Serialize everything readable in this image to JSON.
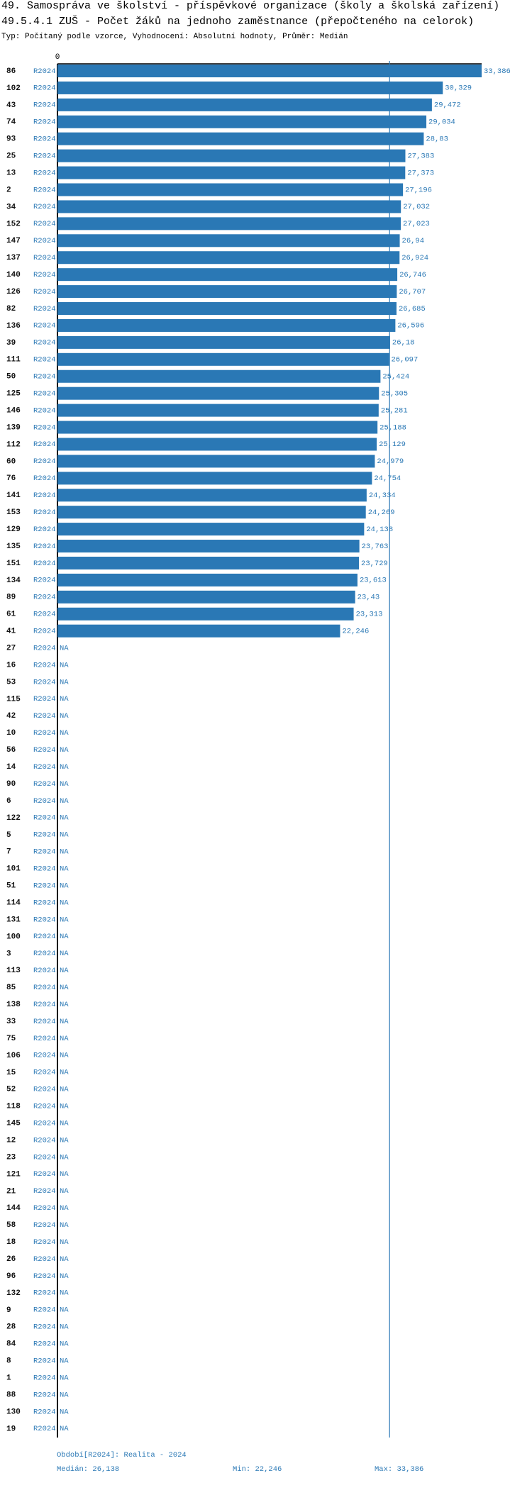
{
  "chart_data": {
    "type": "hbar",
    "title": "49. Samospráva ve školství - příspěvkové organizace (školy a školská zařízení)",
    "subtitle": "49.5.4.1 ZUŠ - Počet žáků na jednoho zaměstnance (přepočteného na celorok)",
    "note": "Typ: Počítaný podle vzorce, Vyhodnocení: Absolutní hodnoty, Průměr: Medián",
    "categories": [
      "86",
      "102",
      "43",
      "74",
      "93",
      "25",
      "13",
      "2",
      "34",
      "152",
      "147",
      "137",
      "140",
      "126",
      "82",
      "136",
      "39",
      "111",
      "50",
      "125",
      "146",
      "139",
      "112",
      "60",
      "76",
      "141",
      "153",
      "129",
      "135",
      "151",
      "134",
      "89",
      "61",
      "41",
      "27",
      "16",
      "53",
      "115",
      "42",
      "10",
      "56",
      "14",
      "90",
      "6",
      "122",
      "5",
      "7",
      "101",
      "51",
      "114",
      "131",
      "100",
      "3",
      "113",
      "85",
      "138",
      "33",
      "75",
      "106",
      "15",
      "52",
      "118",
      "145",
      "12",
      "23",
      "121",
      "21",
      "144",
      "58",
      "18",
      "26",
      "96",
      "132",
      "9",
      "28",
      "84",
      "8",
      "1",
      "88",
      "130",
      "19"
    ],
    "series": [
      {
        "name": "R2024",
        "color": "#2a78b5",
        "values": [
          33.386,
          30.329,
          29.472,
          29.034,
          28.83,
          27.383,
          27.373,
          27.196,
          27.032,
          27.023,
          26.94,
          26.924,
          26.746,
          26.707,
          26.685,
          26.596,
          26.18,
          26.097,
          25.424,
          25.305,
          25.281,
          25.188,
          25.129,
          24.979,
          24.754,
          24.334,
          24.269,
          24.138,
          23.763,
          23.729,
          23.613,
          23.43,
          23.313,
          22.246,
          null,
          null,
          null,
          null,
          null,
          null,
          null,
          null,
          null,
          null,
          null,
          null,
          null,
          null,
          null,
          null,
          null,
          null,
          null,
          null,
          null,
          null,
          null,
          null,
          null,
          null,
          null,
          null,
          null,
          null,
          null,
          null,
          null,
          null,
          null,
          null,
          null,
          null,
          null,
          null,
          null,
          null,
          null,
          null,
          null,
          null,
          null
        ],
        "value_labels": [
          "33,386",
          "30,329",
          "29,472",
          "29,034",
          "28,83",
          "27,383",
          "27,373",
          "27,196",
          "27,032",
          "27,023",
          "26,94",
          "26,924",
          "26,746",
          "26,707",
          "26,685",
          "26,596",
          "26,18",
          "26,097",
          "25,424",
          "25,305",
          "25,281",
          "25,188",
          "25,129",
          "24,979",
          "24,754",
          "24,334",
          "24,269",
          "24,138",
          "23,763",
          "23,729",
          "23,613",
          "23,43",
          "23,313",
          "22,246",
          null,
          null,
          null,
          null,
          null,
          null,
          null,
          null,
          null,
          null,
          null,
          null,
          null,
          null,
          null,
          null,
          null,
          null,
          null,
          null,
          null,
          null,
          null,
          null,
          null,
          null,
          null,
          null,
          null,
          null,
          null,
          null,
          null,
          null,
          null,
          null,
          null,
          null,
          null,
          null,
          null,
          null,
          null,
          null,
          null,
          null,
          null
        ]
      }
    ],
    "na_label": "NA",
    "xlim": [
      0,
      33.386
    ],
    "xticks": [
      0
    ],
    "median": {
      "value": 26.138,
      "label": "Medián: 26,138"
    },
    "period": "Období[R2024]: Realita - 2024",
    "min_label": "Min: 22,246",
    "max_label": "Max: 33,386"
  }
}
